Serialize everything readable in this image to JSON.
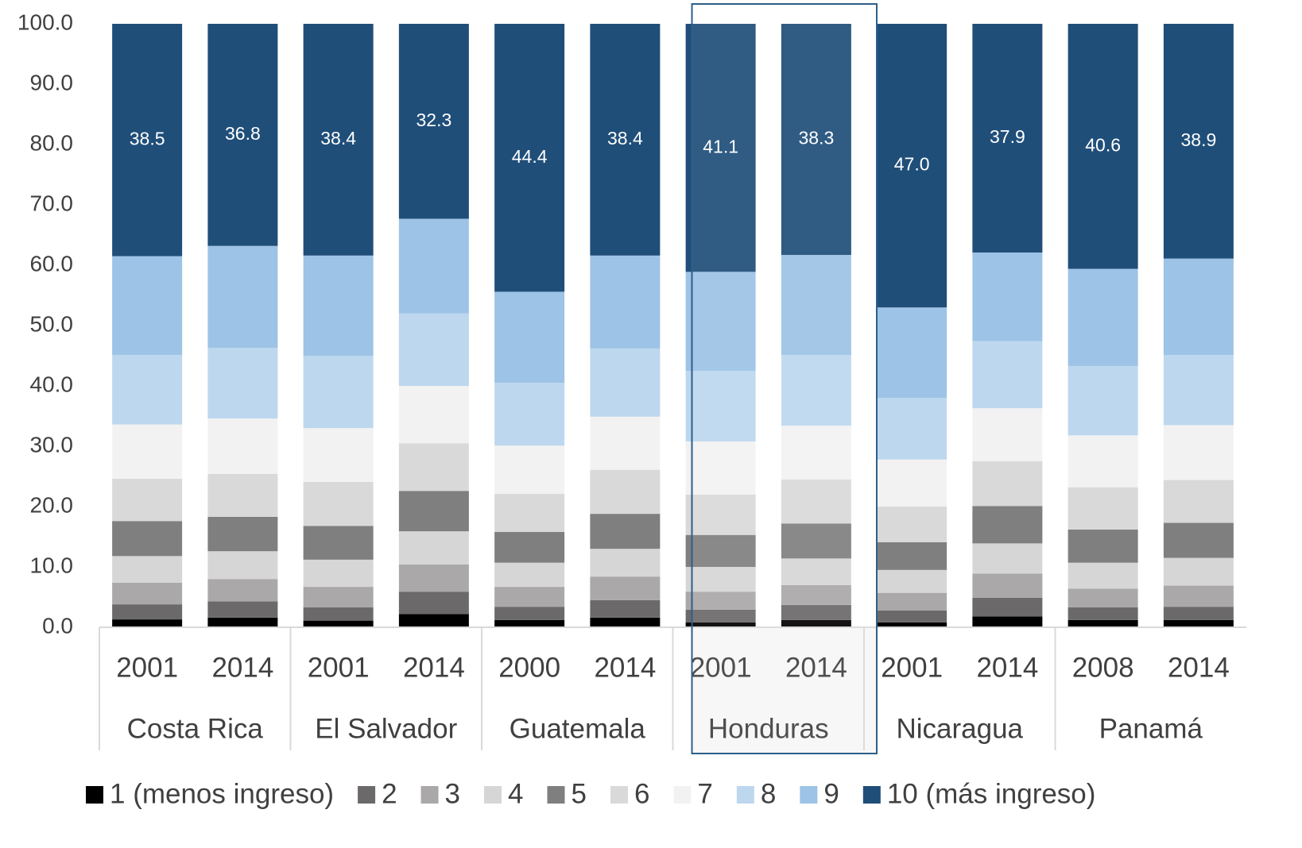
{
  "chart_data": {
    "type": "stacked_bar",
    "categories": [
      "2001",
      "2014",
      "2001",
      "2014",
      "2000",
      "2014",
      "2001",
      "2014",
      "2001",
      "2014",
      "2008",
      "2014"
    ],
    "groups": [
      "Costa Rica",
      "El Salvador",
      "Guatemala",
      "Honduras",
      "Nicaragua",
      "Panamá"
    ],
    "highlight": "Honduras",
    "ylim": [
      0,
      100
    ],
    "yticks": [
      {
        "value": 0,
        "label": "0.0"
      },
      {
        "value": 10,
        "label": "10.0"
      },
      {
        "value": 20,
        "label": "20.0"
      },
      {
        "value": 30,
        "label": "30.0"
      },
      {
        "value": 40,
        "label": "40.0"
      },
      {
        "value": 50,
        "label": "50.0"
      },
      {
        "value": 60,
        "label": "60.0"
      },
      {
        "value": 70,
        "label": "70.0"
      },
      {
        "value": 80,
        "label": "80.0"
      },
      {
        "value": 90,
        "label": "90.0"
      },
      {
        "value": 100,
        "label": "100.0"
      }
    ],
    "series": [
      {
        "name": "1 (menos ingreso)",
        "color": "#000000",
        "values": [
          1.3,
          1.6,
          1.1,
          2.2,
          1.2,
          1.6,
          0.8,
          1.2,
          0.8,
          1.8,
          1.2,
          1.2
        ]
      },
      {
        "name": "2",
        "color": "#6b6969",
        "values": [
          2.5,
          2.7,
          2.2,
          3.7,
          2.2,
          2.9,
          2.1,
          2.5,
          2.0,
          3.1,
          2.1,
          2.2
        ]
      },
      {
        "name": "3",
        "color": "#aaa8a8",
        "values": [
          3.6,
          3.7,
          3.4,
          4.5,
          3.3,
          3.9,
          3.0,
          3.3,
          2.9,
          4.0,
          3.1,
          3.5
        ]
      },
      {
        "name": "4",
        "color": "#d6d6d6",
        "values": [
          4.4,
          4.6,
          4.5,
          5.5,
          4.0,
          4.6,
          4.1,
          4.4,
          3.8,
          5.0,
          4.3,
          4.6
        ]
      },
      {
        "name": "5",
        "color": "#7f7f7f",
        "values": [
          5.8,
          5.7,
          5.6,
          6.7,
          5.1,
          5.8,
          5.3,
          5.8,
          4.6,
          6.2,
          5.5,
          5.8
        ]
      },
      {
        "name": "6",
        "color": "#d9d9d9",
        "values": [
          7.0,
          7.1,
          7.3,
          7.9,
          6.3,
          7.3,
          6.7,
          7.3,
          5.9,
          7.4,
          7.0,
          7.1
        ]
      },
      {
        "name": "7",
        "color": "#f2f2f2",
        "values": [
          9.0,
          9.2,
          8.9,
          9.5,
          8.0,
          8.8,
          8.8,
          8.9,
          7.8,
          8.8,
          8.6,
          9.1
        ]
      },
      {
        "name": "8",
        "color": "#bdd7ee",
        "values": [
          11.5,
          11.7,
          12.0,
          12.0,
          10.4,
          11.3,
          11.7,
          11.7,
          10.2,
          11.1,
          11.5,
          11.6
        ]
      },
      {
        "name": "9",
        "color": "#9dc3e6",
        "values": [
          16.4,
          16.9,
          16.6,
          15.7,
          15.1,
          15.4,
          16.4,
          16.6,
          15.0,
          14.7,
          16.1,
          16.0
        ]
      },
      {
        "name": "10 (más ingreso)",
        "color": "#1f4e79",
        "values": [
          38.5,
          36.8,
          38.4,
          32.3,
          44.4,
          38.4,
          41.1,
          38.3,
          47.0,
          37.9,
          40.6,
          38.9
        ],
        "value_labels": [
          "38.5",
          "36.8",
          "38.4",
          "32.3",
          "44.4",
          "38.4",
          "41.1",
          "38.3",
          "47.0",
          "37.9",
          "40.6",
          "38.9"
        ]
      }
    ]
  }
}
